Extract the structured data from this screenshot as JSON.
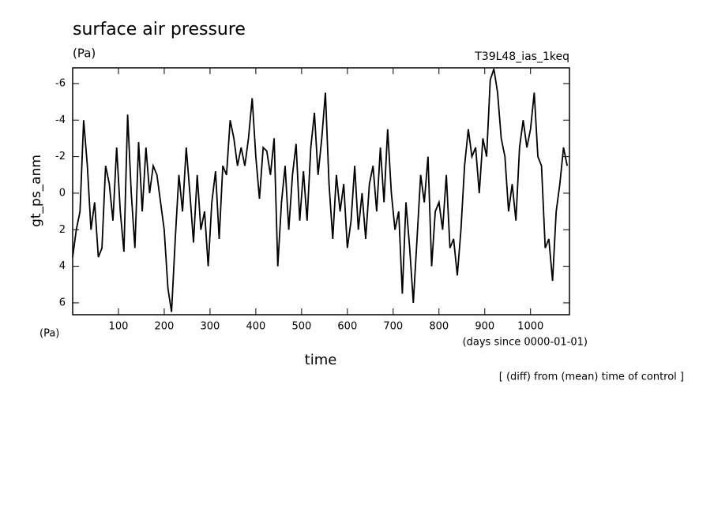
{
  "chart_data": {
    "type": "line",
    "title": "surface air pressure",
    "units_label": "(Pa)",
    "run_label": "T39L48_ias_1keq",
    "y_label": "gt_ps_anm",
    "y_units": "(Pa)",
    "x_label": "time",
    "x_units": "(days since 0000-01-01)",
    "note": "[ (diff) from (mean) time of control ]",
    "color": "#000000",
    "xlim": [
      0,
      1085
    ],
    "ylim": [
      6.65,
      -6.86
    ],
    "xticks": [
      100,
      200,
      300,
      400,
      500,
      600,
      700,
      800,
      900,
      1000
    ],
    "yticks": [
      -6,
      -4,
      -2,
      0,
      2,
      4,
      6
    ],
    "x": [
      0,
      8,
      16,
      24,
      32,
      40,
      48,
      56,
      64,
      72,
      80,
      88,
      96,
      104,
      112,
      120,
      128,
      136,
      144,
      152,
      160,
      168,
      176,
      184,
      192,
      200,
      208,
      216,
      224,
      232,
      240,
      248,
      256,
      264,
      272,
      280,
      288,
      296,
      304,
      312,
      320,
      328,
      336,
      344,
      352,
      360,
      368,
      376,
      384,
      392,
      400,
      408,
      416,
      424,
      432,
      440,
      448,
      456,
      464,
      472,
      480,
      488,
      496,
      504,
      512,
      520,
      528,
      536,
      544,
      552,
      560,
      568,
      576,
      584,
      592,
      600,
      608,
      616,
      624,
      632,
      640,
      648,
      656,
      664,
      672,
      680,
      688,
      696,
      704,
      712,
      720,
      728,
      736,
      744,
      752,
      760,
      768,
      776,
      784,
      792,
      800,
      808,
      816,
      824,
      832,
      840,
      848,
      856,
      864,
      872,
      880,
      888,
      896,
      904,
      912,
      920,
      928,
      936,
      944,
      952,
      960,
      968,
      976,
      984,
      992,
      1000,
      1008,
      1016,
      1024,
      1032,
      1040,
      1048,
      1056,
      1064,
      1072,
      1080
    ],
    "values": [
      3.5,
      2,
      1,
      -4,
      -1.5,
      2,
      0.5,
      3.5,
      3,
      -1.5,
      -0.5,
      1.5,
      -2.5,
      1,
      3.2,
      -4.3,
      0,
      3,
      -2.8,
      1,
      -2.5,
      0,
      -1.5,
      -1,
      0.5,
      2,
      5.2,
      6.5,
      2.5,
      -1,
      1,
      -2.5,
      0,
      2.7,
      -1,
      2,
      1,
      4,
      0.5,
      -1.2,
      2.5,
      -1.5,
      -1,
      -4,
      -3,
      -1.5,
      -2.5,
      -1.5,
      -3,
      -5.2,
      -2,
      0.3,
      -2.5,
      -2.3,
      -1,
      -3,
      4,
      0.5,
      -1.5,
      2,
      -1,
      -2.7,
      1.5,
      -1.2,
      1.5,
      -2.5,
      -4.4,
      -1,
      -3,
      -5.5,
      -0.5,
      2.5,
      -1,
      1,
      -0.5,
      3,
      1.5,
      -1.5,
      2,
      0,
      2.5,
      -0.5,
      -1.5,
      1,
      -2.5,
      0.5,
      -3.5,
      0,
      2,
      1,
      5.5,
      0.5,
      3,
      6,
      2.5,
      -1,
      0.5,
      -2,
      4,
      1,
      0.5,
      2,
      -1,
      3,
      2.5,
      4.5,
      2,
      -1.5,
      -3.5,
      -2,
      -2.5,
      0,
      -3,
      -2,
      -6.2,
      -6.8,
      -5.5,
      -3,
      -2,
      1,
      -0.5,
      1.5,
      -2.5,
      -4,
      -2.5,
      -3.5,
      -5.5,
      -2,
      -1.5,
      3,
      2.5,
      4.8,
      1,
      -0.5,
      -2.5,
      -1.5
    ]
  }
}
